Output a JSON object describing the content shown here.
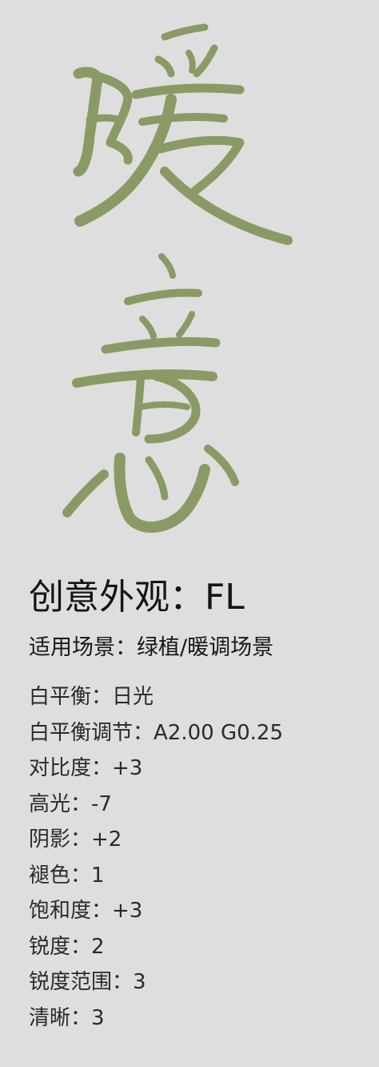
{
  "header": {
    "calligraphy_text": "暖意",
    "brush_color": "#8a9a64",
    "background_color": "#dedede"
  },
  "title": "创意外观：FL",
  "scene": "适用场景：绿植/暖调场景",
  "params": [
    "白平衡：日光",
    "白平衡调节：A2.00 G0.25",
    "对比度：+3",
    "高光：-7",
    "阴影：+2",
    "褪色：1",
    "饱和度：+3",
    "锐度：2",
    "锐度范围：3",
    "清晰：3"
  ]
}
